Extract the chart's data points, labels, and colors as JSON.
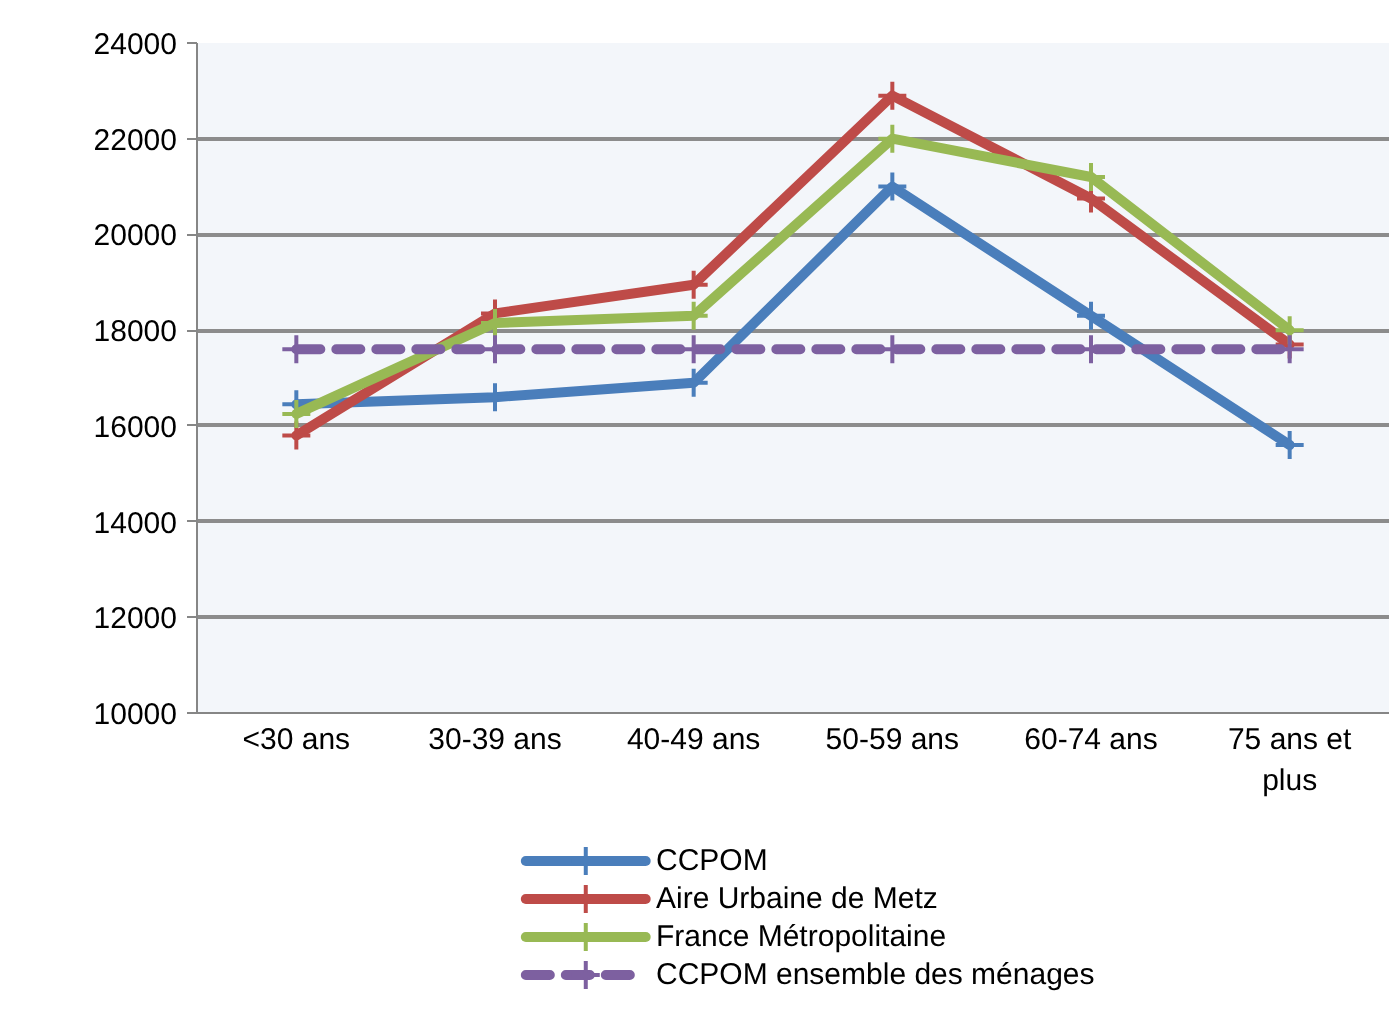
{
  "chart_data": {
    "type": "line",
    "categories": [
      "<30 ans",
      "30-39 ans",
      "40-49 ans",
      "50-59 ans",
      "60-74 ans",
      "75 ans et\nplus"
    ],
    "series": [
      {
        "name": "CCPOM",
        "color": "#4a7ebb",
        "values": [
          16450,
          16600,
          16900,
          21000,
          18300,
          15600
        ]
      },
      {
        "name": "Aire Urbaine de Metz",
        "color": "#be4b48",
        "values": [
          15800,
          18350,
          18950,
          22900,
          20750,
          17700
        ]
      },
      {
        "name": "France Métropolitaine",
        "color": "#98b954",
        "values": [
          16250,
          18150,
          18300,
          22000,
          21200,
          18000
        ]
      },
      {
        "name": "CCPOM ensemble des ménages",
        "color": "#7d60a0",
        "values": [
          17600,
          17600,
          17600,
          17600,
          17600,
          17600
        ],
        "line_style": "dashed"
      }
    ],
    "ylim": [
      10000,
      24000
    ],
    "yticks": [
      10000,
      12000,
      14000,
      16000,
      18000,
      20000,
      22000,
      24000
    ],
    "grid": "y",
    "legend": "bottom",
    "marker": "cross",
    "line_style": "solid"
  }
}
